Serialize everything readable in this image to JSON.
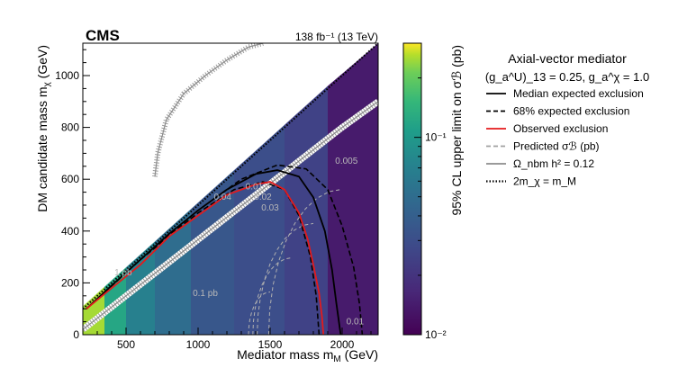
{
  "chart_data": {
    "type": "heatmap",
    "experiment": "CMS",
    "luminosity_label": "138 fb⁻¹ (13 TeV)",
    "xlabel": "Mediator mass m",
    "xlabel_sub": "M",
    "xlabel_unit": " (GeV)",
    "ylabel": "DM candidate mass m",
    "ylabel_sub": "χ",
    "ylabel_unit": " (GeV)",
    "colorbar_label": "95% CL upper limit on σℬ (pb)",
    "xlim": [
      200,
      2250
    ],
    "ylim": [
      0,
      1125
    ],
    "x_ticks": [
      500,
      1000,
      1500,
      2000
    ],
    "y_ticks": [
      0,
      200,
      400,
      600,
      800,
      1000
    ],
    "colorbar": {
      "scale": "log",
      "range": [
        0.01,
        0.3
      ],
      "tick_labels": [
        "10⁻¹",
        "10⁻²"
      ],
      "tick_values": [
        0.1,
        0.01
      ],
      "colormap": "viridis"
    },
    "legend": {
      "title_line1": "Axial-vector mediator",
      "title_line2": "(g_a^U)_13 = 0.25, g_a^χ = 1.0",
      "entries": [
        {
          "label": "Median expected exclusion",
          "style": "solid",
          "color": "#000000"
        },
        {
          "label": "68% expected exclusion",
          "style": "dashed",
          "color": "#000000"
        },
        {
          "label": "Observed exclusion",
          "style": "solid",
          "color": "#e41a1c"
        },
        {
          "label": "Predicted σℬ (pb)",
          "style": "dashed",
          "color": "#a0a0a0"
        },
        {
          "label": "Ω_nbm h² = 0.12",
          "style": "solid",
          "color": "#8c8c8c"
        },
        {
          "label": "2m_χ = m_M",
          "style": "dotted",
          "color": "#000000"
        }
      ]
    },
    "heatmap_columns": [
      {
        "x_range": [
          200,
          350
        ],
        "upper_limit_pb": 0.25
      },
      {
        "x_range": [
          350,
          500
        ],
        "upper_limit_pb": 0.12
      },
      {
        "x_range": [
          500,
          700
        ],
        "upper_limit_pb": 0.07
      },
      {
        "x_range": [
          700,
          950
        ],
        "upper_limit_pb": 0.05
      },
      {
        "x_range": [
          950,
          1250
        ],
        "upper_limit_pb": 0.035
      },
      {
        "x_range": [
          1250,
          1600
        ],
        "upper_limit_pb": 0.03
      },
      {
        "x_range": [
          1600,
          1900
        ],
        "upper_limit_pb": 0.025
      },
      {
        "x_range": [
          1900,
          2250
        ],
        "upper_limit_pb": 0.014
      }
    ],
    "median_expected_exclusion": {
      "x": [
        225,
        400,
        600,
        800,
        1000,
        1200,
        1400,
        1550,
        1700,
        1800,
        1880,
        1930,
        1960,
        1990
      ],
      "y": [
        100,
        190,
        290,
        390,
        480,
        560,
        620,
        635,
        610,
        530,
        400,
        250,
        120,
        0
      ]
    },
    "expected_68_upper": {
      "x": [
        225,
        600,
        1000,
        1300,
        1550,
        1750,
        1900,
        2000,
        2080,
        2120,
        2140
      ],
      "y": [
        100,
        290,
        480,
        600,
        655,
        640,
        560,
        420,
        260,
        120,
        0
      ]
    },
    "expected_68_lower": {
      "x": [
        225,
        600,
        1000,
        1250,
        1450,
        1600,
        1700,
        1780,
        1820,
        1840
      ],
      "y": [
        100,
        290,
        470,
        560,
        590,
        560,
        460,
        300,
        150,
        0
      ]
    },
    "observed_exclusion": {
      "x": [
        225,
        400,
        600,
        800,
        1000,
        1200,
        1400,
        1500,
        1600,
        1700,
        1760,
        1800,
        1840,
        1860,
        1870
      ],
      "y": [
        100,
        180,
        270,
        380,
        460,
        540,
        580,
        590,
        560,
        470,
        370,
        270,
        160,
        70,
        0
      ]
    },
    "relic_density_upper": {
      "x": [
        700,
        720,
        780,
        900,
        1050,
        1200,
        1350,
        1450
      ],
      "y": [
        610,
        700,
        830,
        930,
        1000,
        1060,
        1110,
        1125
      ]
    },
    "relic_density_band": {
      "x": [
        200,
        500,
        800,
        1100,
        1400,
        1700,
        2000,
        2250
      ],
      "y": [
        20,
        150,
        280,
        410,
        540,
        670,
        800,
        900
      ]
    },
    "contour_labels": [
      {
        "text": "0.005",
        "x": 2030,
        "y": 660
      },
      {
        "text": "0.01",
        "x": 1390,
        "y": 560
      },
      {
        "text": "0.02",
        "x": 1450,
        "y": 520
      },
      {
        "text": "0.03",
        "x": 1500,
        "y": 480
      },
      {
        "text": "0.04",
        "x": 1170,
        "y": 520
      },
      {
        "text": "0.1 pb",
        "x": 1050,
        "y": 150
      },
      {
        "text": "0.01",
        "x": 2090,
        "y": 40
      },
      {
        "text": "1 pb",
        "x": 480,
        "y": 230
      }
    ]
  }
}
